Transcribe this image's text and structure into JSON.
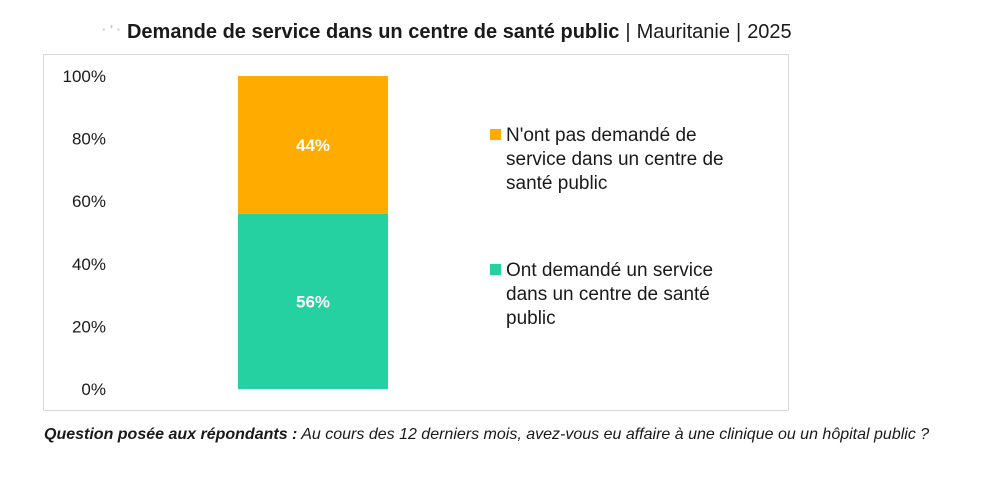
{
  "header": {
    "title": "Demande de service dans un centre de santé public",
    "country": "Mauritanie",
    "year": "2025",
    "separator": "|"
  },
  "footer": {
    "question_label": "Question posée aux répondants :",
    "question_text": "Au cours des 12 derniers mois, avez-vous eu affaire à une clinique ou un hôpital public ?"
  },
  "colors": {
    "not_requested": "#FFAB00",
    "requested": "#26D1A1",
    "bar_label": "#ffffff",
    "axis_text": "#1a1a1a"
  },
  "chart_data": {
    "type": "bar",
    "stacked": true,
    "categories": [
      ""
    ],
    "ylim": [
      0,
      100
    ],
    "yticks": [
      "0%",
      "20%",
      "40%",
      "60%",
      "80%",
      "100%"
    ],
    "series": [
      {
        "name": "Ont demandé un service dans un centre de santé public",
        "values": [
          56
        ],
        "label": "56%",
        "color": "#26D1A1"
      },
      {
        "name": "N'ont pas demandé de service dans un centre de santé public",
        "values": [
          44
        ],
        "label": "44%",
        "color": "#FFAB00"
      }
    ],
    "legend_position": "right",
    "grid": false
  }
}
